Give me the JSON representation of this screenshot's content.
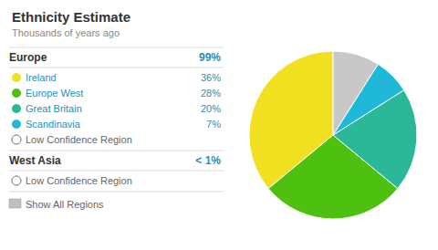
{
  "chart_data": {
    "type": "pie",
    "title": "Ethnicity Estimate",
    "subtitle": "Thousands of years ago",
    "categories": [
      "Ireland",
      "Europe West",
      "Great Britain",
      "Scandinavia",
      null
    ],
    "values": [
      36,
      28,
      20,
      7,
      9
    ],
    "value_labels": [
      "36%",
      "28%",
      "20%",
      "7%",
      null
    ],
    "colors": [
      "#f0e020",
      "#4ec010",
      "#2ab898",
      "#20b8d8",
      "#c8c8c8"
    ],
    "groups": [
      {
        "name": "Europe",
        "value_label": "99%",
        "note": "Low Confidence Region"
      },
      {
        "name": "West Asia",
        "value_label": "< 1%",
        "note": "Low Confidence Region"
      }
    ],
    "annotations": [
      "Show All Regions"
    ],
    "legend": "left"
  }
}
